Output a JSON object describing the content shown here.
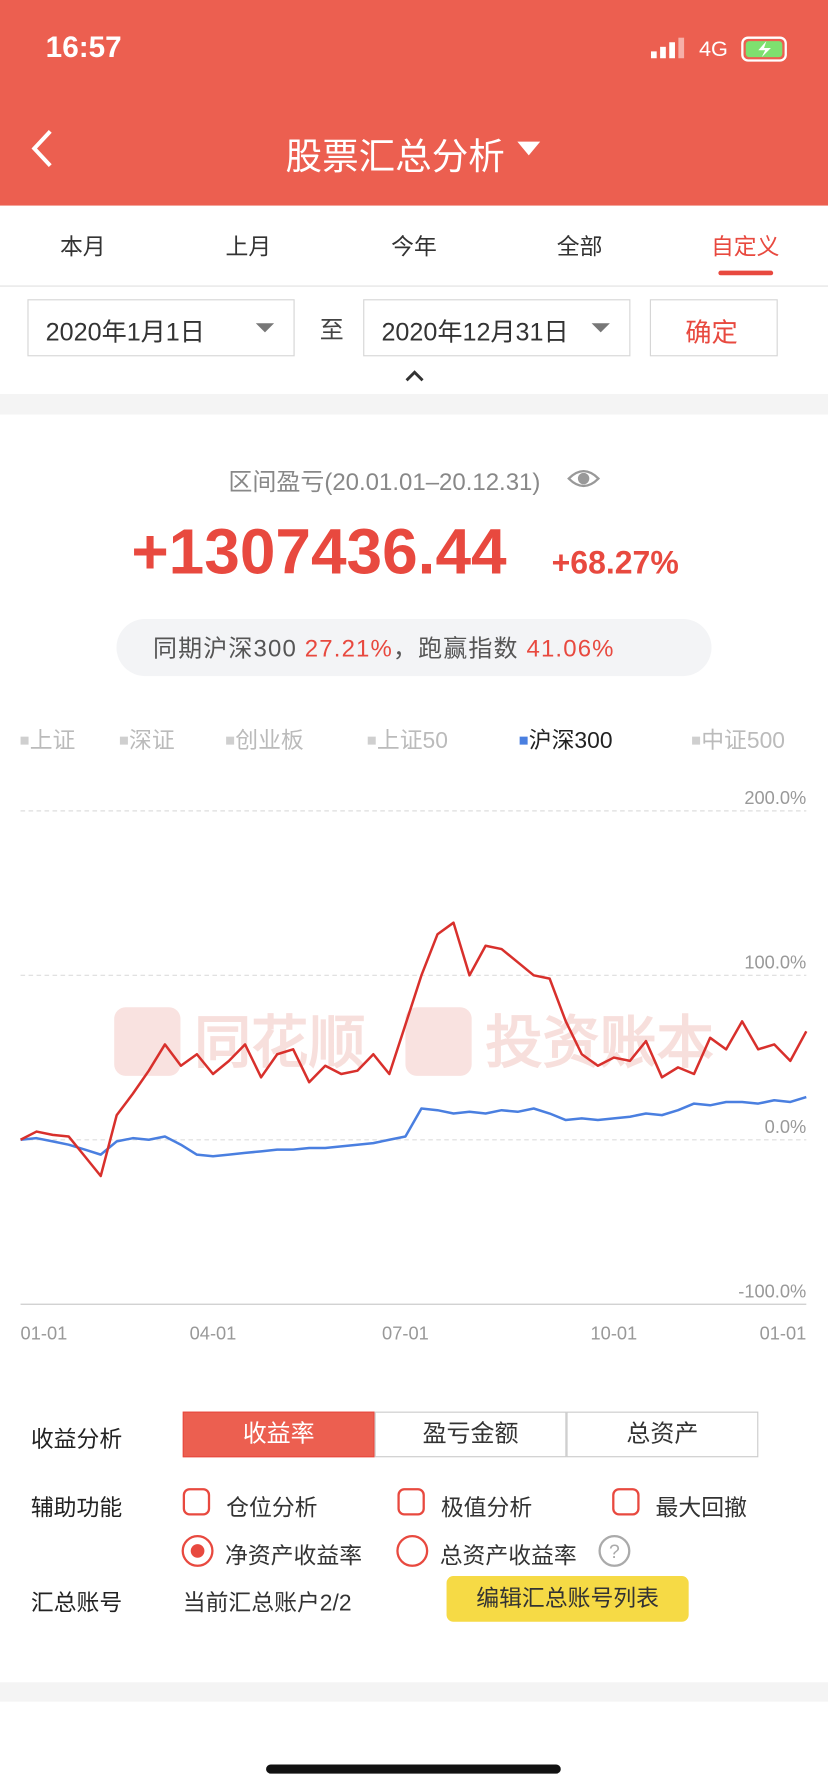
{
  "status_bar": {
    "time": "16:57",
    "network": "4G"
  },
  "nav": {
    "title": "股票汇总分析"
  },
  "tabs": {
    "items": [
      "本月",
      "上月",
      "今年",
      "全部",
      "自定义"
    ]
  },
  "date_range": {
    "start": "2020年1月1日",
    "separator": "至",
    "end": "2020年12月31日",
    "confirm": "确定"
  },
  "summary": {
    "label": "区间盈亏(20.01.01–20.12.31)",
    "amount": "+1307436.44",
    "percent": "+68.27%",
    "compare_label": "同期沪深300",
    "compare_value": "27.21%",
    "beat_label": "，跑赢指数",
    "beat_value": "41.06%"
  },
  "watermark": [
    "同花顺",
    "投资账本"
  ],
  "chart_data": {
    "type": "line",
    "legend": [
      {
        "name": "上证",
        "color": "#cfcfcf"
      },
      {
        "name": "深证",
        "color": "#cfcfcf"
      },
      {
        "name": "创业板",
        "color": "#cfcfcf"
      },
      {
        "name": "上证50",
        "color": "#cfcfcf"
      },
      {
        "name": "沪深300",
        "color": "#4a7fe0"
      },
      {
        "name": "中证500",
        "color": "#cfcfcf"
      }
    ],
    "categories": [
      "01-01",
      null,
      null,
      null,
      null,
      null,
      null,
      null,
      null,
      null,
      null,
      null,
      "04-01",
      null,
      null,
      null,
      null,
      null,
      null,
      null,
      null,
      null,
      null,
      null,
      "07-01",
      null,
      null,
      null,
      null,
      null,
      null,
      null,
      null,
      null,
      null,
      null,
      null,
      "10-01",
      null,
      null,
      null,
      null,
      null,
      null,
      null,
      null,
      null,
      null,
      null,
      "01-01"
    ],
    "series": [
      {
        "color": "#d8302c",
        "values": [
          0,
          5,
          3,
          2,
          -10,
          -22,
          15,
          28,
          42,
          58,
          45,
          52,
          40,
          48,
          58,
          38,
          52,
          55,
          35,
          45,
          40,
          42,
          52,
          40,
          70,
          100,
          125,
          132,
          100,
          118,
          116,
          108,
          100,
          98,
          72,
          52,
          45,
          50,
          48,
          60,
          38,
          44,
          40,
          62,
          55,
          72,
          55,
          58,
          48,
          66
        ]
      },
      {
        "color": "#4a7fe0",
        "values": [
          0,
          1,
          -1,
          -3,
          -6,
          -9,
          -1,
          1,
          0,
          2,
          -3,
          -9,
          -10,
          -9,
          -8,
          -7,
          -6,
          -6,
          -5,
          -5,
          -4,
          -3,
          -2,
          0,
          2,
          19,
          18,
          16,
          17,
          16,
          18,
          17,
          19,
          16,
          12,
          13,
          12,
          13,
          14,
          16,
          15,
          18,
          22,
          21,
          23,
          23,
          22,
          24,
          23,
          26
        ]
      }
    ],
    "ylim": [
      -100,
      200
    ],
    "yticks": [
      {
        "value": -100,
        "label": "-100.0%"
      },
      {
        "value": 0,
        "label": "0.0%"
      },
      {
        "value": 100,
        "label": "100.0%"
      },
      {
        "value": 200,
        "label": "200.0%"
      }
    ],
    "grid": true
  },
  "controls": {
    "analysis_label": "收益分析",
    "segments": [
      "收益率",
      "盈亏金额",
      "总资产"
    ],
    "aux_label": "辅助功能",
    "checkboxes": [
      "仓位分析",
      "极值分析",
      "最大回撤"
    ],
    "radios": [
      "净资产收益率",
      "总资产收益率"
    ],
    "account_label": "汇总账号",
    "account_value": "当前汇总账户2/2",
    "edit_button": "编辑汇总账号列表"
  }
}
